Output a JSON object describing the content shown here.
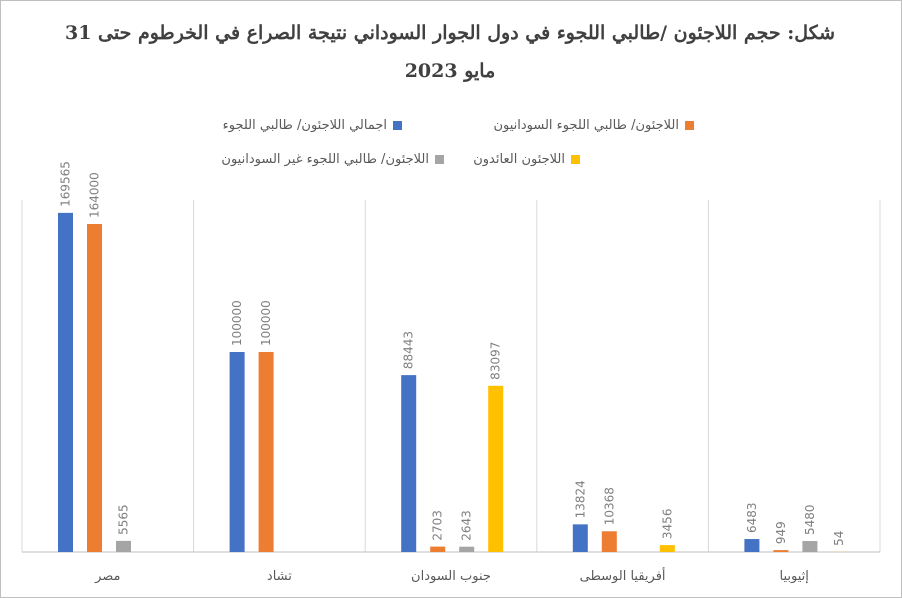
{
  "chart_data": {
    "type": "bar",
    "title": "شكل: حجم اللاجئون /طالبي اللجوء في دول الجوار السوداني نتيجة الصراع في الخرطوم حتى 31 مايو 2023",
    "categories": [
      "مصر",
      "تشاد",
      "جنوب السودان",
      "أفريقيا الوسطى",
      "إثيوبيا"
    ],
    "series": [
      {
        "name": "اجمالي اللاجئون/ طالبي اللجوء",
        "color": "#4472C4",
        "values": [
          169565,
          100000,
          88443,
          13824,
          6483
        ]
      },
      {
        "name": "اللاجئون/ طالبي اللجوء السودانيون",
        "color": "#ED7D31",
        "values": [
          164000,
          100000,
          2703,
          10368,
          949
        ]
      },
      {
        "name": "اللاجئون/ طالبي اللجوء غير السودانيون",
        "color": "#A5A5A5",
        "values": [
          5565,
          null,
          2643,
          null,
          5480
        ]
      },
      {
        "name": "اللاجئون العائدون",
        "color": "#FFC000",
        "values": [
          null,
          null,
          83097,
          3456,
          54
        ]
      }
    ],
    "ylim": [
      0,
      180000
    ],
    "grid": "vertical-category-separators",
    "legend_position": "top"
  }
}
